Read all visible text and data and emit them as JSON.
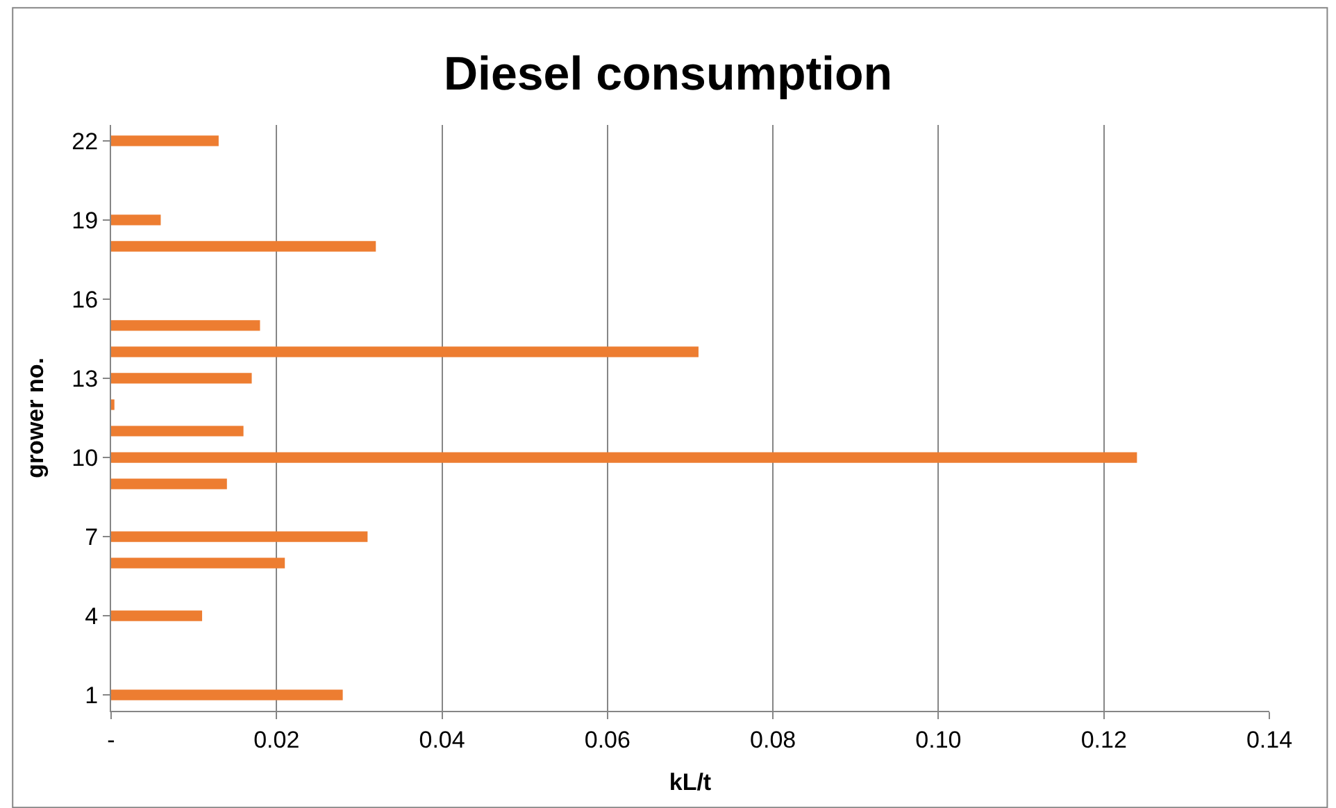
{
  "chart_data": {
    "type": "bar",
    "orientation": "horizontal",
    "title": "Diesel consumption",
    "xlabel": "kL/t",
    "ylabel": "grower no.",
    "categories": [
      "22",
      null,
      null,
      "19",
      null,
      null,
      "16",
      null,
      null,
      "13",
      null,
      null,
      "10",
      null,
      null,
      "7",
      null,
      null,
      "4",
      null,
      null,
      "1"
    ],
    "values": [
      0.013,
      null,
      null,
      0.006,
      0.032,
      null,
      null,
      0.018,
      0.071,
      0.017,
      0.0004,
      0.016,
      0.124,
      0.014,
      null,
      0.031,
      0.021,
      null,
      0.011,
      null,
      null,
      0.028
    ],
    "color": "#ed7d31",
    "xlim": [
      0,
      0.14
    ],
    "xticks": [
      {
        "value": 0,
        "label": "-"
      },
      0.02,
      0.04,
      0.06,
      0.08,
      {
        "value": 0.1,
        "label": "0.10"
      },
      0.12,
      0.14
    ],
    "grid": "x"
  }
}
